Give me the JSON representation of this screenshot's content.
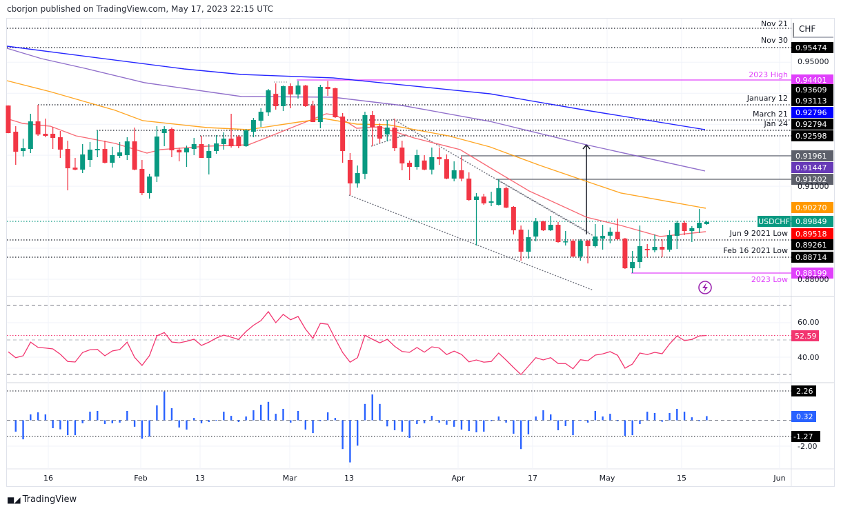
{
  "header": {
    "text": "cborjon published on TradingView.com, May 17, 2023 22:15 UTC"
  },
  "footer": {
    "brand": "TradingView",
    "logo": "TV"
  },
  "chart_data": {
    "type": "candlestick",
    "symbol": "USDCHF",
    "currency": "CHF",
    "colors": {
      "up": "#089981",
      "down": "#f23645"
    },
    "x_ticks": [
      "16",
      "Feb",
      "13",
      "Mar",
      "13",
      "Apr",
      "17",
      "May",
      "15",
      "Jun"
    ],
    "y_ticks": [
      "0.95000",
      "0.91000",
      "0.88000"
    ],
    "ohlc": [
      [
        0.93605,
        0.9361,
        0.9271,
        0.92715
      ],
      [
        0.92759,
        0.92937,
        0.91691,
        0.92114
      ],
      [
        0.92136,
        0.92537,
        0.91958,
        0.92226
      ],
      [
        0.92203,
        0.93338,
        0.9207,
        0.93093
      ],
      [
        0.93093,
        0.93627,
        0.92626,
        0.9267
      ],
      [
        0.92693,
        0.93182,
        0.92581,
        0.92626
      ],
      [
        0.92693,
        0.92915,
        0.92203,
        0.92559
      ],
      [
        0.92581,
        0.92782,
        0.91914,
        0.92181
      ],
      [
        0.92203,
        0.9247,
        0.90868,
        0.9158
      ],
      [
        0.91602,
        0.91914,
        0.91514,
        0.91536
      ],
      [
        0.91536,
        0.92359,
        0.91424,
        0.92025
      ],
      [
        0.91847,
        0.92426,
        0.91625,
        0.92181
      ],
      [
        0.92159,
        0.92804,
        0.91937,
        0.92203
      ],
      [
        0.92203,
        0.9247,
        0.91736,
        0.91758
      ],
      [
        0.91758,
        0.92274,
        0.91602,
        0.92003
      ],
      [
        0.91981,
        0.92426,
        0.91914,
        0.92092
      ],
      [
        0.92003,
        0.92581,
        0.91847,
        0.92448
      ],
      [
        0.92448,
        0.92893,
        0.91514,
        0.91536
      ],
      [
        0.9156,
        0.91847,
        0.90712,
        0.90779
      ],
      [
        0.90779,
        0.91402,
        0.90601,
        0.91313
      ],
      [
        0.91313,
        0.92937,
        0.91135,
        0.92604
      ],
      [
        0.92715,
        0.92937,
        0.92292,
        0.92848
      ],
      [
        0.92848,
        0.92893,
        0.91937,
        0.92159
      ],
      [
        0.92181,
        0.92248,
        0.91803,
        0.92092
      ],
      [
        0.92092,
        0.9231,
        0.91625,
        0.92226
      ],
      [
        0.92203,
        0.92559,
        0.92003,
        0.92359
      ],
      [
        0.92359,
        0.92626,
        0.91914,
        0.91914
      ],
      [
        0.91914,
        0.92359,
        0.9138,
        0.92136
      ],
      [
        0.92136,
        0.92648,
        0.92048,
        0.92381
      ],
      [
        0.92359,
        0.9274,
        0.92181,
        0.92537
      ],
      [
        0.92537,
        0.93338,
        0.92248,
        0.92292
      ],
      [
        0.92604,
        0.92648,
        0.92226,
        0.92292
      ],
      [
        0.92292,
        0.92848,
        0.9227,
        0.92804
      ],
      [
        0.92759,
        0.93205,
        0.92581,
        0.93138
      ],
      [
        0.93115,
        0.93516,
        0.92915,
        0.93405
      ],
      [
        0.93383,
        0.94139,
        0.93271,
        0.94094
      ],
      [
        0.9398,
        0.9432,
        0.93472,
        0.93583
      ],
      [
        0.93583,
        0.9425,
        0.93427,
        0.94228
      ],
      [
        0.94228,
        0.9432,
        0.93516,
        0.93961
      ],
      [
        0.93961,
        0.94401,
        0.93828,
        0.9425
      ],
      [
        0.9425,
        0.9427,
        0.9356,
        0.93583
      ],
      [
        0.93605,
        0.93761,
        0.9307,
        0.9307
      ],
      [
        0.9307,
        0.94272,
        0.92871,
        0.94206
      ],
      [
        0.94206,
        0.944,
        0.93917,
        0.94139
      ],
      [
        0.94161,
        0.94184,
        0.93205,
        0.93227
      ],
      [
        0.93249,
        0.93361,
        0.91758,
        0.92136
      ],
      [
        0.91847,
        0.9207,
        0.90712,
        0.91091
      ],
      [
        0.91091,
        0.91669,
        0.90957,
        0.91424
      ],
      [
        0.91402,
        0.93405,
        0.91224,
        0.93294
      ],
      [
        0.93294,
        0.93427,
        0.92292,
        0.92915
      ],
      [
        0.92937,
        0.93026,
        0.92403,
        0.92537
      ],
      [
        0.9267,
        0.93138,
        0.92448,
        0.92893
      ],
      [
        0.92893,
        0.93182,
        0.92136,
        0.92226
      ],
      [
        0.92248,
        0.9247,
        0.91514,
        0.91736
      ],
      [
        0.91758,
        0.9183,
        0.91202,
        0.91625
      ],
      [
        0.91625,
        0.92181,
        0.91536,
        0.92003
      ],
      [
        0.9183,
        0.92003,
        0.91514,
        0.91536
      ],
      [
        0.91536,
        0.92248,
        0.9138,
        0.91937
      ],
      [
        0.91937,
        0.92248,
        0.91691,
        0.9187
      ],
      [
        0.9187,
        0.92025,
        0.91224,
        0.91247
      ],
      [
        0.91247,
        0.91803,
        0.91158,
        0.91514
      ],
      [
        0.91514,
        0.91958,
        0.91158,
        0.91247
      ],
      [
        0.91247,
        0.91447,
        0.9053,
        0.90557
      ],
      [
        0.90557,
        0.90779,
        0.89089,
        0.90668
      ],
      [
        0.90668,
        0.90757,
        0.90401,
        0.90446
      ],
      [
        0.90468,
        0.90824,
        0.90357,
        0.90512
      ],
      [
        0.90401,
        0.9123,
        0.90379,
        0.9094
      ],
      [
        0.9094,
        0.90985,
        0.9029,
        0.9031
      ],
      [
        0.90335,
        0.90357,
        0.89444,
        0.89578
      ],
      [
        0.896,
        0.89733,
        0.88599,
        0.88888
      ],
      [
        0.88888,
        0.896,
        0.88666,
        0.89355
      ],
      [
        0.89377,
        0.89978,
        0.89222,
        0.89867
      ],
      [
        0.89867,
        0.89889,
        0.89556,
        0.89578
      ],
      [
        0.89578,
        0.90045,
        0.89556,
        0.89756
      ],
      [
        0.89756,
        0.89845,
        0.89178,
        0.892
      ],
      [
        0.892,
        0.89556,
        0.89088,
        0.89222
      ],
      [
        0.89244,
        0.89289,
        0.8871,
        0.88732
      ],
      [
        0.88732,
        0.89289,
        0.88599,
        0.89244
      ],
      [
        0.89244,
        0.89266,
        0.8851,
        0.89066
      ],
      [
        0.89066,
        0.89778,
        0.89022,
        0.89378
      ],
      [
        0.89311,
        0.89756,
        0.88955,
        0.894
      ],
      [
        0.89405,
        0.8967,
        0.8916,
        0.89533
      ],
      [
        0.89533,
        0.89956,
        0.89266,
        0.89289
      ],
      [
        0.89311,
        0.89333,
        0.88332,
        0.88354
      ],
      [
        0.88354,
        0.8891,
        0.88199,
        0.88554
      ],
      [
        0.88554,
        0.89733,
        0.88354,
        0.89066
      ],
      [
        0.88977,
        0.89133,
        0.88711,
        0.88933
      ],
      [
        0.88933,
        0.89444,
        0.88866,
        0.89044
      ],
      [
        0.89044,
        0.89289,
        0.88711,
        0.88955
      ],
      [
        0.88955,
        0.89578,
        0.88888,
        0.89422
      ],
      [
        0.894,
        0.89889,
        0.88977,
        0.89823
      ],
      [
        0.89823,
        0.89889,
        0.89422,
        0.89556
      ],
      [
        0.89556,
        0.89711,
        0.892,
        0.89645
      ],
      [
        0.89645,
        0.90267,
        0.89489,
        0.89823
      ],
      [
        0.89778,
        0.89889,
        0.89756,
        0.89849
      ]
    ],
    "moving_averages": [
      {
        "color": "#f7525f",
        "last": "0.89518"
      },
      {
        "color": "#ff9800",
        "last": "0.90270"
      },
      {
        "color": "#7e57c2",
        "last": "0.91447"
      },
      {
        "color": "#0000ff",
        "last": "0.92796"
      }
    ],
    "level_labels": [
      {
        "text": "Nov 21",
        "color": "#131722"
      },
      {
        "text": "Nov 30",
        "color": "#131722"
      },
      {
        "text": "2023 High",
        "color": "#e040fb"
      },
      {
        "text": "January 12",
        "color": "#131722"
      },
      {
        "text": "March 21",
        "color": "#131722"
      },
      {
        "text": "Jan 24",
        "color": "#131722"
      },
      {
        "text": "Jun 9 2021 Low",
        "color": "#131722"
      },
      {
        "text": "Feb 16 2021 Low",
        "color": "#131722"
      },
      {
        "text": "2023 Low",
        "color": "#e040fb"
      }
    ],
    "price_labels": [
      {
        "value": "0.95474",
        "bg": "#000000"
      },
      {
        "value": "0.94401",
        "bg": "#e040fb"
      },
      {
        "value": "0.93609",
        "bg": "#000000"
      },
      {
        "value": "0.93113",
        "bg": "#000000"
      },
      {
        "value": "0.92796",
        "bg": "#0000ff"
      },
      {
        "value": "0.92794",
        "bg": "#000000"
      },
      {
        "value": "0.92598",
        "bg": "#000000"
      },
      {
        "value": "0.91961",
        "bg": "#5d606b"
      },
      {
        "value": "0.91447",
        "bg": "#673ab7"
      },
      {
        "value": "0.91202",
        "bg": "#5d606b"
      },
      {
        "value": "0.90270",
        "bg": "#ff9800"
      },
      {
        "value": "0.89849",
        "bg": "#089981"
      },
      {
        "value": "0.89518",
        "bg": "#ff0000"
      },
      {
        "value": "0.89261",
        "bg": "#000000"
      },
      {
        "value": "0.88714",
        "bg": "#000000"
      },
      {
        "value": "0.88199",
        "bg": "#e040fb"
      }
    ],
    "rsi": {
      "color": "#f23670",
      "ticks": [
        "60.00",
        "40.00"
      ],
      "last": "52.59",
      "values": [
        43.1,
        39.7,
        40.8,
        48.7,
        45.7,
        45.3,
        44.8,
        41.7,
        37.5,
        37.2,
        42.7,
        44.3,
        44.5,
        40.8,
        43.6,
        44.4,
        48.7,
        39.9,
        35.2,
        40.9,
        52.4,
        54.3,
        48.8,
        48.3,
        49.2,
        50.4,
        46.8,
        48.7,
        51.1,
        52.8,
        51.6,
        50.3,
        54.9,
        58.5,
        61.2,
        66.4,
        60,
        64.8,
        61.7,
        63.6,
        56.3,
        50.9,
        59.6,
        59.1,
        50.7,
        42.7,
        37.1,
        39.7,
        52.7,
        50.4,
        48.3,
        50.4,
        46.3,
        43.3,
        42.8,
        45.6,
        42.9,
        46,
        45.3,
        41.5,
        43.5,
        41.6,
        37.3,
        38.4,
        37.1,
        37.5,
        42.4,
        38.3,
        34,
        29.9,
        34.8,
        39.7,
        38.4,
        39.7,
        36.3,
        36.3,
        33.3,
        38.5,
        37.9,
        41.2,
        41.9,
        43.2,
        41.1,
        33.6,
        36,
        42.4,
        41.5,
        42.8,
        42,
        47.7,
        52.3,
        49.6,
        50.3,
        52.3,
        52.59
      ]
    },
    "histogram": {
      "color": "#2962ff",
      "ticks": [
        "2.26",
        "-1.27",
        "-2.00"
      ],
      "last": "0.32",
      "values": [
        null,
        -0.88,
        -1.47,
        0.45,
        0.61,
        0.45,
        -0.61,
        -0.7,
        -1.15,
        -1.15,
        -0.23,
        0.66,
        0.72,
        -0.29,
        -0.23,
        -0.18,
        0.72,
        -0.5,
        -1.42,
        -1.26,
        1.15,
        2.22,
        0.93,
        -0.56,
        -0.72,
        0.18,
        -0.23,
        -0.13,
        0.02,
        0.66,
        0.34,
        -0.13,
        0.29,
        0.77,
        1.2,
        1.42,
        0.5,
        0.88,
        -0.18,
        0.72,
        -0.72,
        -0.99,
        -0.07,
        0.61,
        0.18,
        -2.22,
        -3.25,
        -1.96,
        1.26,
        1.99,
        1.26,
        -0.47,
        -0.77,
        -0.88,
        -1.36,
        -0.29,
        -0.23,
        0.34,
        -0.18,
        -0.34,
        -0.5,
        -0.72,
        -0.83,
        -0.93,
        -0.88,
        -0.07,
        0.29,
        -0.18,
        -1.04,
        -2.22,
        -1.09,
        0.29,
        0.77,
        0.45,
        -0.77,
        -0.45,
        -1.15,
        0.02,
        -0.18,
        0.72,
        0.29,
        0.5,
        -0.07,
        -1.2,
        -1.15,
        -0.29,
        0.66,
        0.56,
        -0.11,
        0.56,
        0.88,
        0.66,
        0.23,
        -0.07,
        0.32
      ]
    }
  }
}
